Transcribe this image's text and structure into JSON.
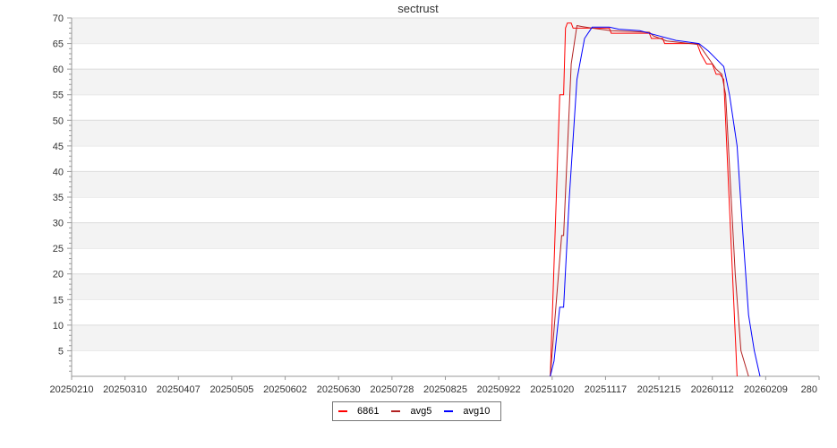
{
  "chart_data": {
    "type": "line",
    "title": "sectrust",
    "xlabel": "",
    "ylabel": "",
    "ylim": [
      0,
      70
    ],
    "yticks": [
      5,
      10,
      15,
      20,
      25,
      30,
      35,
      40,
      45,
      50,
      55,
      60,
      65,
      70
    ],
    "xlim": [
      "2025-02-10",
      "2026-03-09"
    ],
    "xtick_labels": [
      "20250210",
      "20250310",
      "20250407",
      "20250505",
      "20250602",
      "20250630",
      "20250728",
      "20250825",
      "20250922",
      "20251020",
      "20251117",
      "20251215",
      "20260112",
      "20260209",
      "280"
    ],
    "grid": "alternating horizontal bands",
    "legend": "bottom-center",
    "series": [
      {
        "name": "6861",
        "color": "#ff0000",
        "points": [
          [
            "2025-10-19",
            0
          ],
          [
            "2025-10-24",
            55
          ],
          [
            "2025-10-26",
            55
          ],
          [
            "2025-10-27",
            68
          ],
          [
            "2025-10-28",
            69
          ],
          [
            "2025-10-30",
            69
          ],
          [
            "2025-10-31",
            68
          ],
          [
            "2025-11-19",
            68
          ],
          [
            "2025-11-20",
            67
          ],
          [
            "2025-12-10",
            67
          ],
          [
            "2025-12-11",
            66
          ],
          [
            "2025-12-17",
            66
          ],
          [
            "2025-12-18",
            65
          ],
          [
            "2026-01-04",
            65
          ],
          [
            "2026-01-06",
            63
          ],
          [
            "2026-01-09",
            61
          ],
          [
            "2026-01-12",
            61
          ],
          [
            "2026-01-14",
            59
          ],
          [
            "2026-01-16",
            59
          ],
          [
            "2026-01-18",
            58
          ],
          [
            "2026-01-25",
            0
          ]
        ]
      },
      {
        "name": "avg5",
        "color": "#b22222",
        "points": [
          [
            "2025-10-19",
            0
          ],
          [
            "2025-10-25",
            27.5
          ],
          [
            "2025-10-26",
            27.5
          ],
          [
            "2025-10-30",
            61
          ],
          [
            "2025-11-02",
            68.5
          ],
          [
            "2025-11-05",
            68.3
          ],
          [
            "2025-11-10",
            68
          ],
          [
            "2025-11-20",
            67.5
          ],
          [
            "2025-12-10",
            67.2
          ],
          [
            "2025-12-12",
            66.5
          ],
          [
            "2025-12-19",
            65.5
          ],
          [
            "2026-01-05",
            64.8
          ],
          [
            "2026-01-14",
            60
          ],
          [
            "2026-01-17",
            59
          ],
          [
            "2026-01-19",
            55
          ],
          [
            "2026-01-24",
            20
          ],
          [
            "2026-01-27",
            5
          ],
          [
            "2026-01-31",
            0
          ]
        ]
      },
      {
        "name": "avg10",
        "color": "#0000ff",
        "points": [
          [
            "2025-10-19",
            0
          ],
          [
            "2025-10-21",
            3
          ],
          [
            "2025-10-24",
            13.5
          ],
          [
            "2025-10-26",
            13.5
          ],
          [
            "2025-10-29",
            35
          ],
          [
            "2025-11-02",
            58
          ],
          [
            "2025-11-06",
            66
          ],
          [
            "2025-11-10",
            68.2
          ],
          [
            "2025-11-19",
            68.2
          ],
          [
            "2025-11-24",
            67.8
          ],
          [
            "2025-12-05",
            67.5
          ],
          [
            "2025-12-12",
            66.8
          ],
          [
            "2025-12-24",
            65.6
          ],
          [
            "2026-01-05",
            65
          ],
          [
            "2026-01-10",
            63.5
          ],
          [
            "2026-01-14",
            62
          ],
          [
            "2026-01-18",
            60.5
          ],
          [
            "2026-01-21",
            55
          ],
          [
            "2026-01-25",
            45
          ],
          [
            "2026-01-28",
            28
          ],
          [
            "2026-01-31",
            12
          ],
          [
            "2026-02-03",
            5
          ],
          [
            "2026-02-06",
            0
          ]
        ]
      }
    ]
  }
}
